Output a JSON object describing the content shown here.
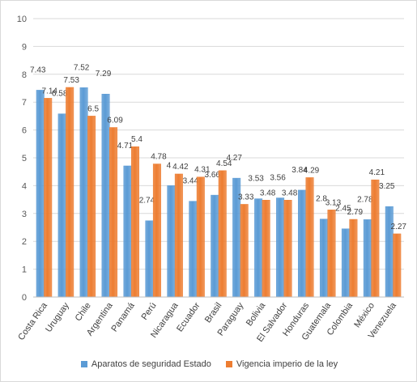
{
  "chart_data": {
    "type": "bar",
    "categories": [
      "Costa Rica",
      "Uruguay",
      "Chile",
      "Argentina",
      "Panamá",
      "Perú",
      "Nicaragua",
      "Ecuador",
      "Brasil",
      "Paraguay",
      "Bolivia",
      "El Salvador",
      "Honduras",
      "Guatemala",
      "Colombia",
      "México",
      "Venezuela"
    ],
    "series": [
      {
        "name": "Aparatos de seguridad Estado",
        "color": "#5b9bd5",
        "values": [
          7.43,
          6.58,
          7.52,
          7.29,
          4.71,
          2.74,
          4,
          3.44,
          3.66,
          4.27,
          3.53,
          3.56,
          3.84,
          2.8,
          2.45,
          2.78,
          3.25
        ],
        "labels": [
          "7.43",
          "6.58",
          "7.52",
          "7.29",
          "4.71",
          "2.74",
          "4",
          "3.44",
          "3.66",
          "4.27",
          "3.53",
          "3.56",
          "3.84",
          "2.8",
          "2.45",
          "2.78",
          "3.25"
        ]
      },
      {
        "name": "Vigencia imperio de la ley",
        "color": "#ed7d31",
        "values": [
          7.14,
          7.53,
          6.5,
          6.09,
          5.4,
          4.78,
          4.42,
          4.31,
          4.54,
          3.33,
          3.48,
          3.48,
          4.29,
          3.13,
          2.79,
          4.21,
          2.27
        ],
        "labels": [
          "7.14",
          "7.53",
          "6.5",
          "6.09",
          "5.4",
          "4.78",
          "4.42",
          "4.31",
          "4.54",
          "3.33",
          "3.48",
          "3.48",
          "4.29",
          "3.13",
          "2.79",
          "4.21",
          "2.27"
        ]
      }
    ],
    "ylim": [
      0,
      10
    ],
    "yticks": [
      "0",
      "1",
      "2",
      "3",
      "4",
      "5",
      "6",
      "7",
      "8",
      "9",
      "10"
    ],
    "grid": true,
    "legend_position": "bottom",
    "title": "",
    "xlabel": "",
    "ylabel": ""
  }
}
